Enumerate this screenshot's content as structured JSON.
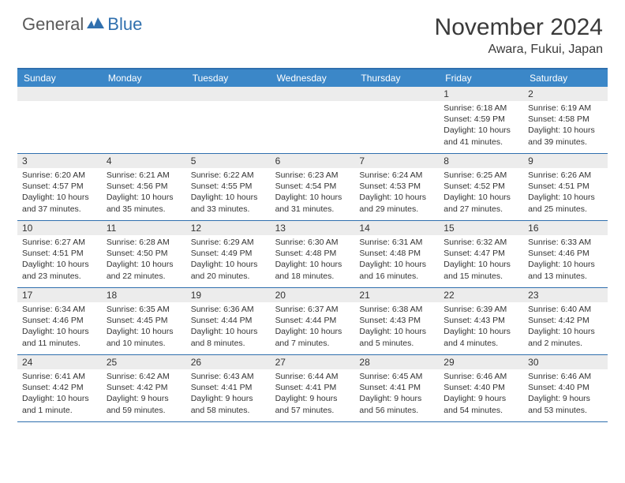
{
  "branding": {
    "word1": "General",
    "word2": "Blue",
    "color_word1": "#5a5a5a",
    "color_word2": "#2f6fae",
    "icon_color": "#2f6fae"
  },
  "header": {
    "title": "November 2024",
    "location": "Awara, Fukui, Japan",
    "title_fontsize": 30,
    "location_fontsize": 16,
    "text_color": "#3a3a3a"
  },
  "styling": {
    "header_bg": "#3b87c8",
    "header_text_color": "#ffffff",
    "accent_line_color": "#2f6fae",
    "daynum_bg": "#ececec",
    "body_text_color": "#333333",
    "cell_fontsize": 10.5,
    "daynum_fontsize": 12,
    "dayheader_fontsize": 12
  },
  "day_names": [
    "Sunday",
    "Monday",
    "Tuesday",
    "Wednesday",
    "Thursday",
    "Friday",
    "Saturday"
  ],
  "weeks": [
    [
      {
        "n": "",
        "empty": true
      },
      {
        "n": "",
        "empty": true
      },
      {
        "n": "",
        "empty": true
      },
      {
        "n": "",
        "empty": true
      },
      {
        "n": "",
        "empty": true
      },
      {
        "n": "1",
        "sunrise": "Sunrise: 6:18 AM",
        "sunset": "Sunset: 4:59 PM",
        "dl1": "Daylight: 10 hours",
        "dl2": "and 41 minutes."
      },
      {
        "n": "2",
        "sunrise": "Sunrise: 6:19 AM",
        "sunset": "Sunset: 4:58 PM",
        "dl1": "Daylight: 10 hours",
        "dl2": "and 39 minutes."
      }
    ],
    [
      {
        "n": "3",
        "sunrise": "Sunrise: 6:20 AM",
        "sunset": "Sunset: 4:57 PM",
        "dl1": "Daylight: 10 hours",
        "dl2": "and 37 minutes."
      },
      {
        "n": "4",
        "sunrise": "Sunrise: 6:21 AM",
        "sunset": "Sunset: 4:56 PM",
        "dl1": "Daylight: 10 hours",
        "dl2": "and 35 minutes."
      },
      {
        "n": "5",
        "sunrise": "Sunrise: 6:22 AM",
        "sunset": "Sunset: 4:55 PM",
        "dl1": "Daylight: 10 hours",
        "dl2": "and 33 minutes."
      },
      {
        "n": "6",
        "sunrise": "Sunrise: 6:23 AM",
        "sunset": "Sunset: 4:54 PM",
        "dl1": "Daylight: 10 hours",
        "dl2": "and 31 minutes."
      },
      {
        "n": "7",
        "sunrise": "Sunrise: 6:24 AM",
        "sunset": "Sunset: 4:53 PM",
        "dl1": "Daylight: 10 hours",
        "dl2": "and 29 minutes."
      },
      {
        "n": "8",
        "sunrise": "Sunrise: 6:25 AM",
        "sunset": "Sunset: 4:52 PM",
        "dl1": "Daylight: 10 hours",
        "dl2": "and 27 minutes."
      },
      {
        "n": "9",
        "sunrise": "Sunrise: 6:26 AM",
        "sunset": "Sunset: 4:51 PM",
        "dl1": "Daylight: 10 hours",
        "dl2": "and 25 minutes."
      }
    ],
    [
      {
        "n": "10",
        "sunrise": "Sunrise: 6:27 AM",
        "sunset": "Sunset: 4:51 PM",
        "dl1": "Daylight: 10 hours",
        "dl2": "and 23 minutes."
      },
      {
        "n": "11",
        "sunrise": "Sunrise: 6:28 AM",
        "sunset": "Sunset: 4:50 PM",
        "dl1": "Daylight: 10 hours",
        "dl2": "and 22 minutes."
      },
      {
        "n": "12",
        "sunrise": "Sunrise: 6:29 AM",
        "sunset": "Sunset: 4:49 PM",
        "dl1": "Daylight: 10 hours",
        "dl2": "and 20 minutes."
      },
      {
        "n": "13",
        "sunrise": "Sunrise: 6:30 AM",
        "sunset": "Sunset: 4:48 PM",
        "dl1": "Daylight: 10 hours",
        "dl2": "and 18 minutes."
      },
      {
        "n": "14",
        "sunrise": "Sunrise: 6:31 AM",
        "sunset": "Sunset: 4:48 PM",
        "dl1": "Daylight: 10 hours",
        "dl2": "and 16 minutes."
      },
      {
        "n": "15",
        "sunrise": "Sunrise: 6:32 AM",
        "sunset": "Sunset: 4:47 PM",
        "dl1": "Daylight: 10 hours",
        "dl2": "and 15 minutes."
      },
      {
        "n": "16",
        "sunrise": "Sunrise: 6:33 AM",
        "sunset": "Sunset: 4:46 PM",
        "dl1": "Daylight: 10 hours",
        "dl2": "and 13 minutes."
      }
    ],
    [
      {
        "n": "17",
        "sunrise": "Sunrise: 6:34 AM",
        "sunset": "Sunset: 4:46 PM",
        "dl1": "Daylight: 10 hours",
        "dl2": "and 11 minutes."
      },
      {
        "n": "18",
        "sunrise": "Sunrise: 6:35 AM",
        "sunset": "Sunset: 4:45 PM",
        "dl1": "Daylight: 10 hours",
        "dl2": "and 10 minutes."
      },
      {
        "n": "19",
        "sunrise": "Sunrise: 6:36 AM",
        "sunset": "Sunset: 4:44 PM",
        "dl1": "Daylight: 10 hours",
        "dl2": "and 8 minutes."
      },
      {
        "n": "20",
        "sunrise": "Sunrise: 6:37 AM",
        "sunset": "Sunset: 4:44 PM",
        "dl1": "Daylight: 10 hours",
        "dl2": "and 7 minutes."
      },
      {
        "n": "21",
        "sunrise": "Sunrise: 6:38 AM",
        "sunset": "Sunset: 4:43 PM",
        "dl1": "Daylight: 10 hours",
        "dl2": "and 5 minutes."
      },
      {
        "n": "22",
        "sunrise": "Sunrise: 6:39 AM",
        "sunset": "Sunset: 4:43 PM",
        "dl1": "Daylight: 10 hours",
        "dl2": "and 4 minutes."
      },
      {
        "n": "23",
        "sunrise": "Sunrise: 6:40 AM",
        "sunset": "Sunset: 4:42 PM",
        "dl1": "Daylight: 10 hours",
        "dl2": "and 2 minutes."
      }
    ],
    [
      {
        "n": "24",
        "sunrise": "Sunrise: 6:41 AM",
        "sunset": "Sunset: 4:42 PM",
        "dl1": "Daylight: 10 hours",
        "dl2": "and 1 minute."
      },
      {
        "n": "25",
        "sunrise": "Sunrise: 6:42 AM",
        "sunset": "Sunset: 4:42 PM",
        "dl1": "Daylight: 9 hours",
        "dl2": "and 59 minutes."
      },
      {
        "n": "26",
        "sunrise": "Sunrise: 6:43 AM",
        "sunset": "Sunset: 4:41 PM",
        "dl1": "Daylight: 9 hours",
        "dl2": "and 58 minutes."
      },
      {
        "n": "27",
        "sunrise": "Sunrise: 6:44 AM",
        "sunset": "Sunset: 4:41 PM",
        "dl1": "Daylight: 9 hours",
        "dl2": "and 57 minutes."
      },
      {
        "n": "28",
        "sunrise": "Sunrise: 6:45 AM",
        "sunset": "Sunset: 4:41 PM",
        "dl1": "Daylight: 9 hours",
        "dl2": "and 56 minutes."
      },
      {
        "n": "29",
        "sunrise": "Sunrise: 6:46 AM",
        "sunset": "Sunset: 4:40 PM",
        "dl1": "Daylight: 9 hours",
        "dl2": "and 54 minutes."
      },
      {
        "n": "30",
        "sunrise": "Sunrise: 6:46 AM",
        "sunset": "Sunset: 4:40 PM",
        "dl1": "Daylight: 9 hours",
        "dl2": "and 53 minutes."
      }
    ]
  ]
}
